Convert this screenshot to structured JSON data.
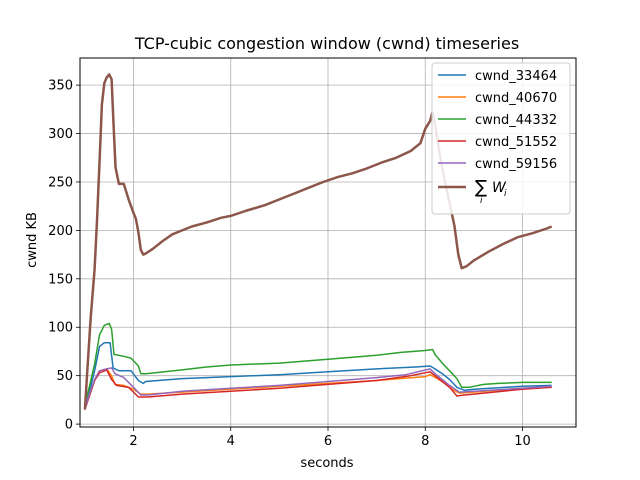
{
  "chart_data": {
    "type": "line",
    "title": "TCP-cubic congestion window (cwnd) timeseries",
    "xlabel": "seconds",
    "ylabel": "cwnd KB",
    "xlim": [
      0.9,
      11.1
    ],
    "ylim": [
      -3,
      378
    ],
    "xticks": [
      2,
      4,
      6,
      8,
      10
    ],
    "yticks": [
      0,
      50,
      100,
      150,
      200,
      250,
      300,
      350
    ],
    "grid": true,
    "legend_position": "top-right",
    "series": [
      {
        "name": "cwnd_33464",
        "color": "#1f77b4",
        "width": 1.5,
        "points": [
          [
            1.0,
            18
          ],
          [
            1.1,
            35
          ],
          [
            1.2,
            55
          ],
          [
            1.3,
            80
          ],
          [
            1.4,
            84
          ],
          [
            1.52,
            84
          ],
          [
            1.58,
            58
          ],
          [
            1.7,
            55
          ],
          [
            1.95,
            55
          ],
          [
            2.1,
            45
          ],
          [
            2.2,
            42
          ],
          [
            2.25,
            44
          ],
          [
            3.0,
            47
          ],
          [
            4.0,
            49
          ],
          [
            5.0,
            51
          ],
          [
            6.0,
            54
          ],
          [
            7.0,
            57
          ],
          [
            7.8,
            59
          ],
          [
            8.1,
            60
          ],
          [
            8.2,
            57
          ],
          [
            8.35,
            52
          ],
          [
            8.5,
            46
          ],
          [
            8.65,
            38
          ],
          [
            8.8,
            35
          ],
          [
            9.0,
            36
          ],
          [
            10.0,
            39
          ],
          [
            10.6,
            40
          ]
        ]
      },
      {
        "name": "cwnd_40670",
        "color": "#ff7f0e",
        "width": 1.5,
        "points": [
          [
            1.0,
            16
          ],
          [
            1.1,
            30
          ],
          [
            1.2,
            45
          ],
          [
            1.3,
            55
          ],
          [
            1.45,
            57
          ],
          [
            1.55,
            50
          ],
          [
            1.62,
            41
          ],
          [
            1.8,
            40
          ],
          [
            2.0,
            36
          ],
          [
            2.15,
            31
          ],
          [
            2.3,
            31
          ],
          [
            3.0,
            33
          ],
          [
            4.0,
            36
          ],
          [
            5.0,
            39
          ],
          [
            6.0,
            42
          ],
          [
            7.0,
            45
          ],
          [
            8.0,
            49
          ],
          [
            8.1,
            51
          ],
          [
            8.25,
            47
          ],
          [
            8.4,
            42
          ],
          [
            8.55,
            36
          ],
          [
            8.7,
            32
          ],
          [
            9.0,
            33
          ],
          [
            10.0,
            37
          ],
          [
            10.6,
            38
          ]
        ]
      },
      {
        "name": "cwnd_44332",
        "color": "#2ca02c",
        "width": 1.5,
        "points": [
          [
            1.0,
            20
          ],
          [
            1.1,
            40
          ],
          [
            1.2,
            62
          ],
          [
            1.3,
            92
          ],
          [
            1.4,
            102
          ],
          [
            1.5,
            104
          ],
          [
            1.55,
            98
          ],
          [
            1.6,
            72
          ],
          [
            1.8,
            70
          ],
          [
            1.95,
            68
          ],
          [
            2.1,
            60
          ],
          [
            2.15,
            52
          ],
          [
            2.25,
            52
          ],
          [
            3.0,
            56
          ],
          [
            3.5,
            59
          ],
          [
            4.0,
            61
          ],
          [
            5.0,
            63
          ],
          [
            6.0,
            67
          ],
          [
            7.0,
            71
          ],
          [
            7.5,
            74
          ],
          [
            8.0,
            76
          ],
          [
            8.15,
            77
          ],
          [
            8.2,
            72
          ],
          [
            8.35,
            63
          ],
          [
            8.5,
            55
          ],
          [
            8.65,
            47
          ],
          [
            8.75,
            38
          ],
          [
            8.9,
            38
          ],
          [
            9.2,
            41
          ],
          [
            9.5,
            42
          ],
          [
            10.0,
            43
          ],
          [
            10.6,
            43
          ]
        ]
      },
      {
        "name": "cwnd_51552",
        "color": "#d62728",
        "width": 1.5,
        "points": [
          [
            1.0,
            15
          ],
          [
            1.1,
            30
          ],
          [
            1.2,
            45
          ],
          [
            1.3,
            53
          ],
          [
            1.45,
            56
          ],
          [
            1.55,
            46
          ],
          [
            1.65,
            40
          ],
          [
            1.9,
            38
          ],
          [
            2.0,
            33
          ],
          [
            2.1,
            28
          ],
          [
            2.3,
            28
          ],
          [
            3.0,
            31
          ],
          [
            4.0,
            34
          ],
          [
            5.0,
            37
          ],
          [
            6.0,
            41
          ],
          [
            7.0,
            45
          ],
          [
            7.7,
            50
          ],
          [
            8.1,
            54
          ],
          [
            8.2,
            50
          ],
          [
            8.35,
            44
          ],
          [
            8.5,
            38
          ],
          [
            8.65,
            29
          ],
          [
            8.8,
            30
          ],
          [
            9.0,
            31
          ],
          [
            10.0,
            36
          ],
          [
            10.6,
            38
          ]
        ]
      },
      {
        "name": "cwnd_59156",
        "color": "#9467bd",
        "width": 1.5,
        "points": [
          [
            1.0,
            16
          ],
          [
            1.1,
            32
          ],
          [
            1.2,
            46
          ],
          [
            1.3,
            55
          ],
          [
            1.45,
            57
          ],
          [
            1.55,
            58
          ],
          [
            1.62,
            52
          ],
          [
            1.8,
            48
          ],
          [
            2.0,
            38
          ],
          [
            2.15,
            30
          ],
          [
            2.3,
            30
          ],
          [
            3.0,
            34
          ],
          [
            4.0,
            37
          ],
          [
            5.0,
            40
          ],
          [
            6.0,
            44
          ],
          [
            7.0,
            48
          ],
          [
            7.6,
            51
          ],
          [
            8.1,
            57
          ],
          [
            8.2,
            52
          ],
          [
            8.35,
            46
          ],
          [
            8.5,
            40
          ],
          [
            8.7,
            33
          ],
          [
            9.0,
            34
          ],
          [
            10.0,
            37
          ],
          [
            10.6,
            39
          ]
        ]
      },
      {
        "name": "∑W_i",
        "color": "#8c564b",
        "width": 2.5,
        "points": [
          [
            1.0,
            15
          ],
          [
            1.05,
            55
          ],
          [
            1.12,
            110
          ],
          [
            1.2,
            160
          ],
          [
            1.25,
            210
          ],
          [
            1.3,
            270
          ],
          [
            1.35,
            330
          ],
          [
            1.4,
            352
          ],
          [
            1.45,
            358
          ],
          [
            1.5,
            361
          ],
          [
            1.55,
            356
          ],
          [
            1.58,
            320
          ],
          [
            1.63,
            265
          ],
          [
            1.7,
            248
          ],
          [
            1.8,
            248
          ],
          [
            1.9,
            232
          ],
          [
            2.0,
            218
          ],
          [
            2.05,
            212
          ],
          [
            2.1,
            198
          ],
          [
            2.15,
            180
          ],
          [
            2.2,
            175
          ],
          [
            2.25,
            176
          ],
          [
            2.4,
            181
          ],
          [
            2.6,
            189
          ],
          [
            2.8,
            196
          ],
          [
            3.0,
            200
          ],
          [
            3.2,
            204
          ],
          [
            3.5,
            208
          ],
          [
            3.8,
            213
          ],
          [
            4.0,
            215
          ],
          [
            4.3,
            220
          ],
          [
            4.7,
            226
          ],
          [
            5.0,
            232
          ],
          [
            5.3,
            238
          ],
          [
            5.6,
            244
          ],
          [
            5.9,
            250
          ],
          [
            6.2,
            255
          ],
          [
            6.5,
            259
          ],
          [
            6.8,
            264
          ],
          [
            7.1,
            270
          ],
          [
            7.4,
            275
          ],
          [
            7.7,
            282
          ],
          [
            7.9,
            290
          ],
          [
            8.0,
            305
          ],
          [
            8.1,
            313
          ],
          [
            8.15,
            322
          ],
          [
            8.2,
            310
          ],
          [
            8.3,
            278
          ],
          [
            8.4,
            252
          ],
          [
            8.5,
            228
          ],
          [
            8.6,
            205
          ],
          [
            8.68,
            175
          ],
          [
            8.75,
            161
          ],
          [
            8.85,
            163
          ],
          [
            9.0,
            169
          ],
          [
            9.3,
            178
          ],
          [
            9.6,
            186
          ],
          [
            9.9,
            193
          ],
          [
            10.2,
            197
          ],
          [
            10.5,
            202
          ],
          [
            10.6,
            204
          ]
        ]
      }
    ]
  }
}
